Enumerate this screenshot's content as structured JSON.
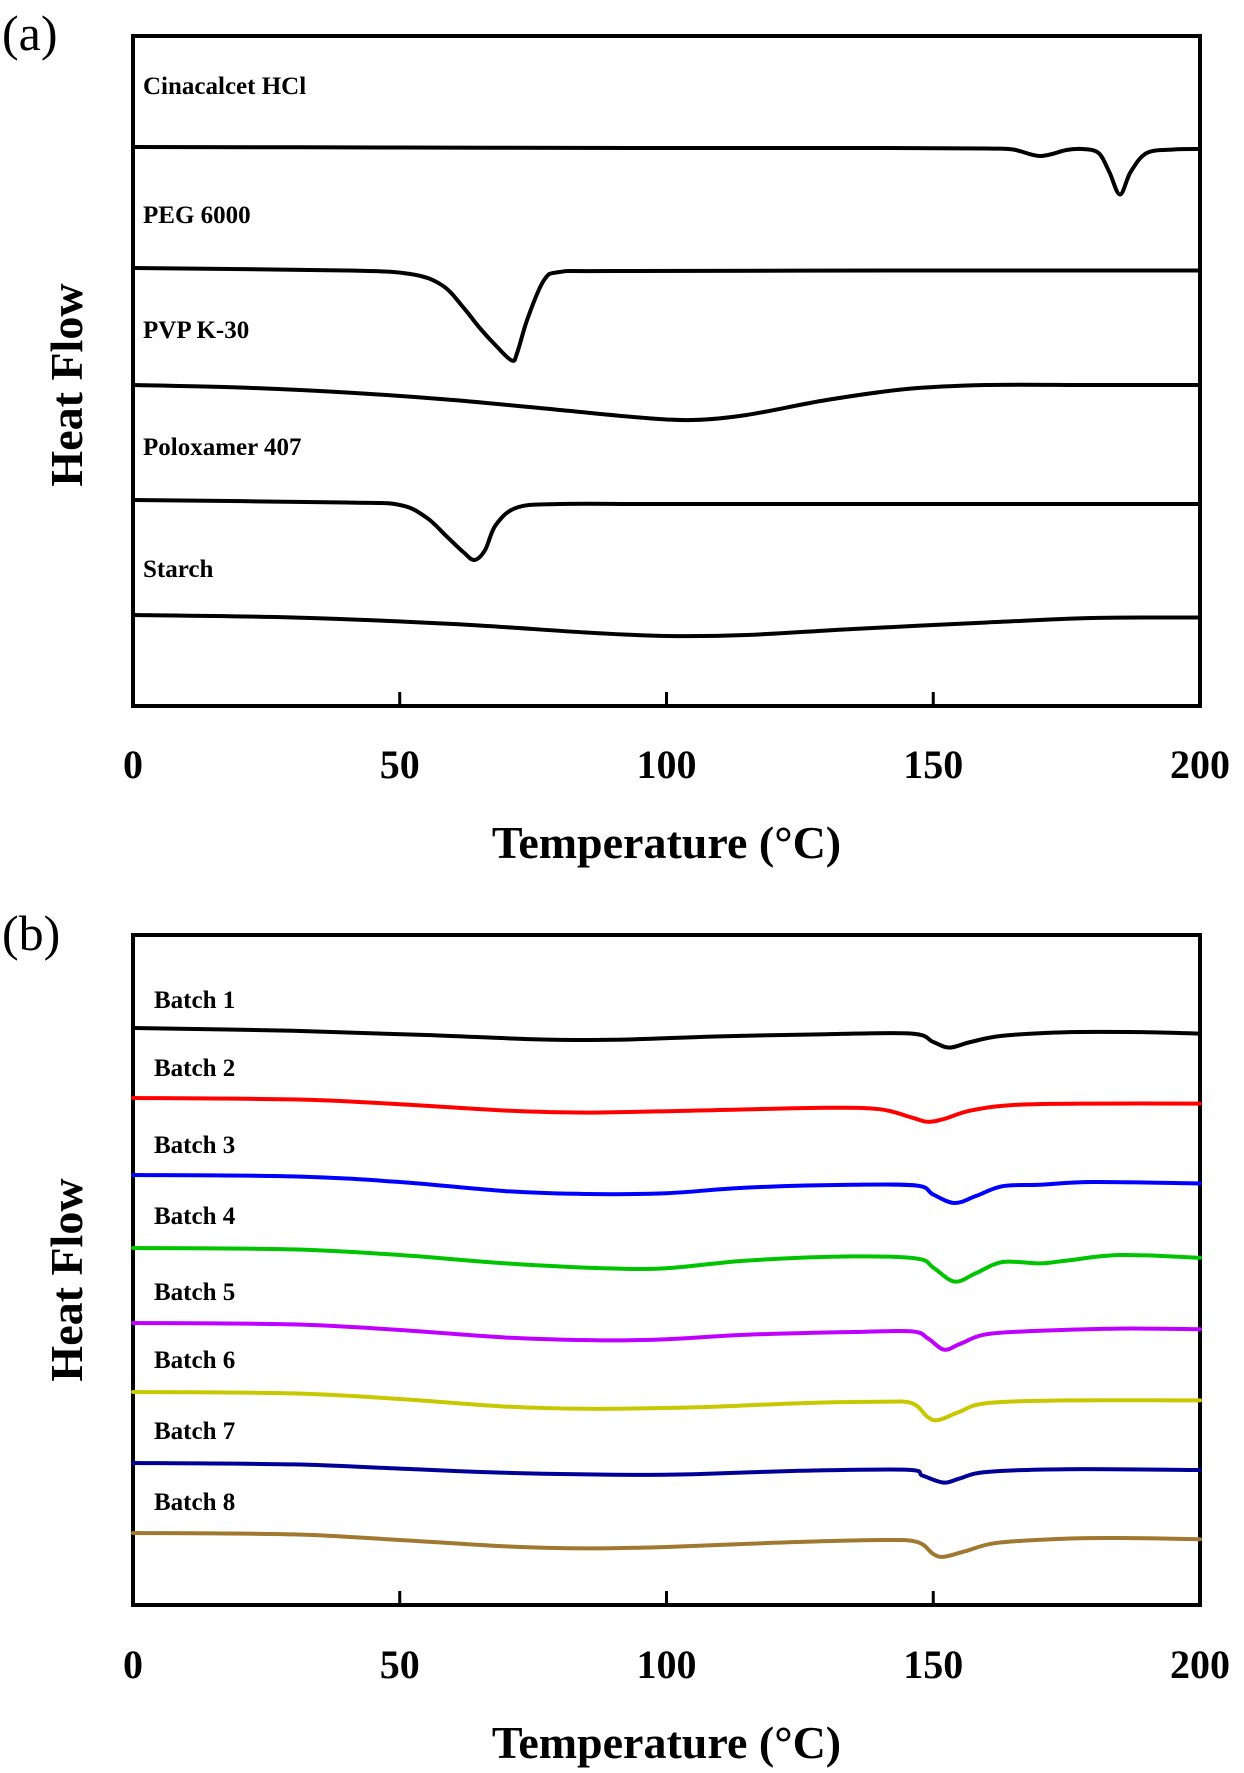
{
  "chart_data": [
    {
      "panel": "(a)",
      "type": "line",
      "xlabel": "Temperature (°C)",
      "ylabel": "Heat Flow",
      "xlim": [
        0,
        200
      ],
      "xticks": [
        0,
        50,
        100,
        150,
        200
      ],
      "grid": false,
      "legend": "none",
      "series": [
        {
          "name": "Cinacalcet HCl",
          "color": "#000000",
          "points": [
            [
              0,
              0
            ],
            [
              50,
              -0.01
            ],
            [
              100,
              -0.02
            ],
            [
              140,
              -0.02
            ],
            [
              160,
              -0.03
            ],
            [
              165,
              -0.05
            ],
            [
              170,
              -0.18
            ],
            [
              175,
              -0.06
            ],
            [
              178,
              -0.04
            ],
            [
              181,
              -0.12
            ],
            [
              183,
              -0.5
            ],
            [
              185,
              -0.95
            ],
            [
              187,
              -0.5
            ],
            [
              190,
              -0.12
            ],
            [
              195,
              -0.05
            ],
            [
              200,
              -0.04
            ]
          ]
        },
        {
          "name": "PEG 6000",
          "color": "#000000",
          "points": [
            [
              0,
              0
            ],
            [
              40,
              -0.05
            ],
            [
              52,
              -0.12
            ],
            [
              58,
              -0.35
            ],
            [
              62,
              -0.8
            ],
            [
              65,
              -1.2
            ],
            [
              68,
              -1.55
            ],
            [
              71,
              -1.85
            ],
            [
              72,
              -1.7
            ],
            [
              74,
              -1.0
            ],
            [
              77,
              -0.25
            ],
            [
              80,
              -0.08
            ],
            [
              90,
              -0.06
            ],
            [
              150,
              -0.05
            ],
            [
              200,
              -0.05
            ]
          ]
        },
        {
          "name": "PVP K-30",
          "color": "#000000",
          "points": [
            [
              0,
              0
            ],
            [
              20,
              -0.05
            ],
            [
              40,
              -0.15
            ],
            [
              60,
              -0.3
            ],
            [
              80,
              -0.5
            ],
            [
              95,
              -0.65
            ],
            [
              105,
              -0.7
            ],
            [
              115,
              -0.6
            ],
            [
              130,
              -0.3
            ],
            [
              145,
              -0.08
            ],
            [
              160,
              0
            ],
            [
              180,
              0
            ],
            [
              200,
              0
            ]
          ]
        },
        {
          "name": "Poloxamer 407",
          "color": "#000000",
          "points": [
            [
              0,
              0
            ],
            [
              40,
              -0.05
            ],
            [
              50,
              -0.1
            ],
            [
              55,
              -0.35
            ],
            [
              59,
              -0.75
            ],
            [
              62,
              -1.05
            ],
            [
              64,
              -1.2
            ],
            [
              66,
              -1.0
            ],
            [
              68,
              -0.5
            ],
            [
              72,
              -0.15
            ],
            [
              80,
              -0.08
            ],
            [
              100,
              -0.08
            ],
            [
              150,
              -0.08
            ],
            [
              200,
              -0.08
            ]
          ]
        },
        {
          "name": "Starch",
          "color": "#000000",
          "points": [
            [
              0,
              0
            ],
            [
              30,
              -0.05
            ],
            [
              60,
              -0.18
            ],
            [
              85,
              -0.35
            ],
            [
              100,
              -0.42
            ],
            [
              115,
              -0.4
            ],
            [
              135,
              -0.28
            ],
            [
              160,
              -0.15
            ],
            [
              180,
              -0.06
            ],
            [
              200,
              -0.05
            ]
          ]
        }
      ]
    },
    {
      "panel": "(b)",
      "type": "line",
      "xlabel": "Temperature (°C)",
      "ylabel": "Heat Flow",
      "xlim": [
        0,
        200
      ],
      "xticks": [
        0,
        50,
        100,
        150,
        200
      ],
      "grid": false,
      "legend": "none",
      "series": [
        {
          "name": "Batch 1",
          "color": "#000000",
          "points": [
            [
              0,
              0
            ],
            [
              30,
              -0.1
            ],
            [
              55,
              -0.25
            ],
            [
              75,
              -0.4
            ],
            [
              90,
              -0.42
            ],
            [
              110,
              -0.3
            ],
            [
              130,
              -0.22
            ],
            [
              146,
              -0.2
            ],
            [
              150,
              -0.5
            ],
            [
              153,
              -0.7
            ],
            [
              157,
              -0.5
            ],
            [
              163,
              -0.28
            ],
            [
              175,
              -0.15
            ],
            [
              190,
              -0.15
            ],
            [
              200,
              -0.2
            ]
          ]
        },
        {
          "name": "Batch 2",
          "color": "#ff0000",
          "points": [
            [
              0,
              0
            ],
            [
              30,
              -0.05
            ],
            [
              50,
              -0.22
            ],
            [
              70,
              -0.45
            ],
            [
              85,
              -0.52
            ],
            [
              105,
              -0.45
            ],
            [
              130,
              -0.35
            ],
            [
              140,
              -0.4
            ],
            [
              146,
              -0.7
            ],
            [
              149,
              -0.85
            ],
            [
              152,
              -0.75
            ],
            [
              157,
              -0.45
            ],
            [
              165,
              -0.25
            ],
            [
              180,
              -0.2
            ],
            [
              200,
              -0.2
            ]
          ]
        },
        {
          "name": "Batch 3",
          "color": "#0000ff",
          "points": [
            [
              0,
              0
            ],
            [
              30,
              -0.05
            ],
            [
              50,
              -0.25
            ],
            [
              70,
              -0.58
            ],
            [
              85,
              -0.68
            ],
            [
              100,
              -0.65
            ],
            [
              115,
              -0.45
            ],
            [
              135,
              -0.35
            ],
            [
              147,
              -0.38
            ],
            [
              150,
              -0.7
            ],
            [
              154,
              -1.0
            ],
            [
              158,
              -0.75
            ],
            [
              163,
              -0.4
            ],
            [
              170,
              -0.35
            ],
            [
              180,
              -0.25
            ],
            [
              200,
              -0.3
            ]
          ]
        },
        {
          "name": "Batch 4",
          "color": "#00c400",
          "points": [
            [
              0,
              0
            ],
            [
              30,
              -0.05
            ],
            [
              50,
              -0.25
            ],
            [
              70,
              -0.55
            ],
            [
              88,
              -0.72
            ],
            [
              100,
              -0.72
            ],
            [
              115,
              -0.45
            ],
            [
              135,
              -0.3
            ],
            [
              147,
              -0.38
            ],
            [
              150,
              -0.7
            ],
            [
              154,
              -1.2
            ],
            [
              158,
              -0.9
            ],
            [
              163,
              -0.5
            ],
            [
              170,
              -0.55
            ],
            [
              175,
              -0.45
            ],
            [
              185,
              -0.25
            ],
            [
              200,
              -0.35
            ]
          ]
        },
        {
          "name": "Batch 5",
          "color": "#c000ff",
          "points": [
            [
              0,
              0
            ],
            [
              30,
              -0.05
            ],
            [
              50,
              -0.25
            ],
            [
              70,
              -0.52
            ],
            [
              88,
              -0.62
            ],
            [
              100,
              -0.58
            ],
            [
              115,
              -0.42
            ],
            [
              135,
              -0.32
            ],
            [
              146,
              -0.3
            ],
            [
              149,
              -0.55
            ],
            [
              152,
              -0.95
            ],
            [
              155,
              -0.75
            ],
            [
              160,
              -0.4
            ],
            [
              170,
              -0.28
            ],
            [
              185,
              -0.2
            ],
            [
              200,
              -0.22
            ]
          ]
        },
        {
          "name": "Batch 6",
          "color": "#c8c800",
          "points": [
            [
              0,
              0
            ],
            [
              30,
              -0.05
            ],
            [
              50,
              -0.25
            ],
            [
              70,
              -0.52
            ],
            [
              85,
              -0.6
            ],
            [
              105,
              -0.55
            ],
            [
              125,
              -0.4
            ],
            [
              140,
              -0.35
            ],
            [
              146,
              -0.4
            ],
            [
              149,
              -0.9
            ],
            [
              151,
              -1.0
            ],
            [
              155,
              -0.7
            ],
            [
              160,
              -0.4
            ],
            [
              175,
              -0.3
            ],
            [
              200,
              -0.3
            ]
          ]
        },
        {
          "name": "Batch 7",
          "color": "#000099",
          "points": [
            [
              0,
              0
            ],
            [
              30,
              -0.05
            ],
            [
              50,
              -0.2
            ],
            [
              70,
              -0.35
            ],
            [
              90,
              -0.42
            ],
            [
              105,
              -0.4
            ],
            [
              125,
              -0.28
            ],
            [
              145,
              -0.24
            ],
            [
              148,
              -0.45
            ],
            [
              152,
              -0.7
            ],
            [
              155,
              -0.55
            ],
            [
              160,
              -0.32
            ],
            [
              175,
              -0.22
            ],
            [
              200,
              -0.25
            ]
          ]
        },
        {
          "name": "Batch 8",
          "color": "#a07830",
          "points": [
            [
              0,
              0
            ],
            [
              30,
              -0.05
            ],
            [
              50,
              -0.25
            ],
            [
              70,
              -0.48
            ],
            [
              85,
              -0.55
            ],
            [
              100,
              -0.5
            ],
            [
              120,
              -0.35
            ],
            [
              140,
              -0.25
            ],
            [
              147,
              -0.32
            ],
            [
              150,
              -0.75
            ],
            [
              152,
              -0.85
            ],
            [
              156,
              -0.65
            ],
            [
              162,
              -0.35
            ],
            [
              175,
              -0.2
            ],
            [
              185,
              -0.18
            ],
            [
              200,
              -0.22
            ]
          ]
        }
      ]
    }
  ]
}
